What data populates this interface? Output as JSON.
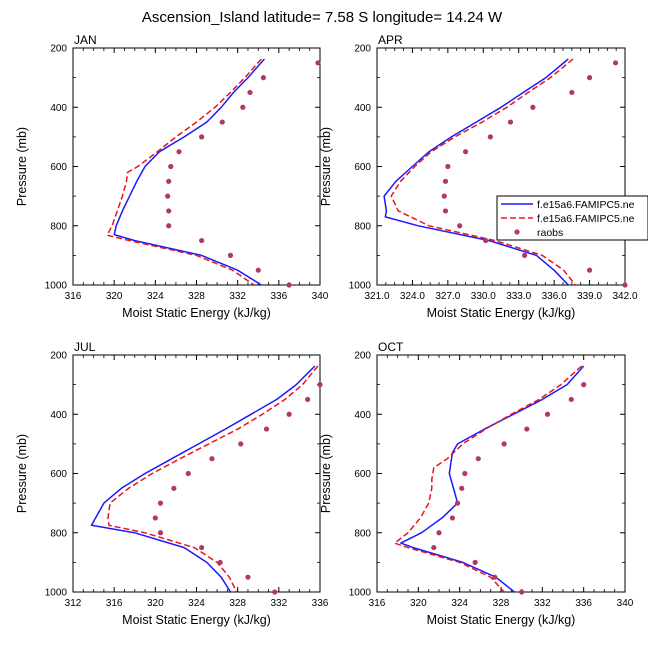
{
  "title": "Ascension_Island  latitude= 7.58 S longitude= 14.24 W",
  "legend": {
    "entries": [
      {
        "label": "f.e15a6.FAMIPC5.ne",
        "style": "solid",
        "color": "#1a1aff"
      },
      {
        "label": "f.e15a6.FAMIPC5.ne",
        "style": "dashed",
        "color": "#e8161b"
      },
      {
        "label": "raobs",
        "style": "marker",
        "color": "#b03a62"
      }
    ]
  },
  "chart_data": [
    {
      "type": "line",
      "panel": "JAN",
      "xlabel": "Moist Static Energy (kJ/kg)",
      "ylabel": "Pressure (mb)",
      "xlim": [
        316,
        340
      ],
      "xticks": [
        316,
        320,
        324,
        328,
        332,
        336,
        340
      ],
      "xtick_labels": [
        "316",
        "320",
        "324",
        "328",
        "332",
        "336",
        "340"
      ],
      "ylim": [
        200,
        1000
      ],
      "yticks": [
        200,
        400,
        600,
        800,
        1000
      ],
      "ytick_labels": [
        "200",
        "400",
        "600",
        "800",
        "1000"
      ],
      "series": [
        {
          "name": "f.e15a6.FAMIPC5.ne (solid)",
          "p": [
            237,
            300,
            350,
            400,
            450,
            500,
            550,
            600,
            650,
            700,
            750,
            800,
            830,
            850,
            900,
            950,
            1000
          ],
          "x": [
            334.6,
            333.0,
            331.6,
            330.4,
            329.0,
            326.8,
            324.4,
            323.0,
            322.2,
            321.5,
            320.8,
            320.2,
            320.0,
            322.0,
            328.5,
            332.0,
            334.3
          ]
        },
        {
          "name": "f.e15a6.FAMIPC5.ne (dashed)",
          "p": [
            237,
            300,
            350,
            400,
            450,
            500,
            550,
            600,
            620,
            650,
            700,
            750,
            800,
            832,
            850,
            900,
            950,
            1000
          ],
          "x": [
            334.3,
            332.7,
            331.3,
            329.8,
            328.0,
            326.0,
            324.2,
            322.3,
            321.3,
            321.2,
            320.8,
            320.3,
            319.8,
            319.3,
            321.5,
            328.0,
            331.5,
            333.6
          ]
        },
        {
          "name": "raobs",
          "p": [
            250,
            300,
            350,
            400,
            450,
            500,
            550,
            600,
            650,
            700,
            750,
            800,
            850,
            900,
            950,
            1000
          ],
          "x": [
            339.8,
            334.5,
            333.2,
            332.5,
            330.5,
            328.5,
            326.3,
            325.5,
            325.3,
            325.2,
            325.3,
            325.3,
            328.5,
            331.3,
            334.0,
            337.0
          ]
        }
      ]
    },
    {
      "type": "line",
      "panel": "APR",
      "xlabel": "Moist Static Energy (kJ/kg)",
      "ylabel": "Pressure (mb)",
      "xlim": [
        321.0,
        342.0
      ],
      "xticks": [
        321.0,
        324.0,
        327.0,
        330.0,
        333.0,
        336.0,
        339.0,
        342.0
      ],
      "xtick_labels": [
        "321.0",
        "324.0",
        "327.0",
        "330.0",
        "333.0",
        "336.0",
        "339.0",
        "342.0"
      ],
      "ylim": [
        200,
        1000
      ],
      "yticks": [
        200,
        400,
        600,
        800,
        1000
      ],
      "ytick_labels": [
        "200",
        "400",
        "600",
        "800",
        "1000"
      ],
      "series": [
        {
          "name": "f.e15a6.FAMIPC5.ne (solid)",
          "p": [
            237,
            300,
            350,
            400,
            450,
            500,
            550,
            600,
            650,
            700,
            750,
            770,
            800,
            850,
            900,
            950,
            1000
          ],
          "x": [
            337.2,
            335.3,
            333.4,
            331.5,
            329.4,
            327.3,
            325.4,
            324.0,
            322.6,
            321.6,
            321.8,
            321.7,
            324.5,
            330.5,
            334.5,
            336.0,
            337.2
          ]
        },
        {
          "name": "f.e15a6.FAMIPC5.ne (dashed)",
          "p": [
            237,
            300,
            350,
            400,
            450,
            500,
            550,
            600,
            650,
            700,
            750,
            800,
            850,
            900,
            950,
            1000
          ],
          "x": [
            337.6,
            335.7,
            333.8,
            332.0,
            329.9,
            327.6,
            325.6,
            324.2,
            323.0,
            322.2,
            322.8,
            325.4,
            331.0,
            335.0,
            336.8,
            337.8
          ]
        },
        {
          "name": "raobs",
          "p": [
            250,
            300,
            350,
            400,
            450,
            500,
            550,
            600,
            650,
            700,
            750,
            800,
            850,
            900,
            950,
            1000
          ],
          "x": [
            341.2,
            339.0,
            337.5,
            334.2,
            332.3,
            330.6,
            328.5,
            327.0,
            326.8,
            326.7,
            326.8,
            328.0,
            330.2,
            333.5,
            339.0,
            342.0
          ]
        }
      ]
    },
    {
      "type": "line",
      "panel": "JUL",
      "xlabel": "Moist Static Energy (kJ/kg)",
      "ylabel": "Pressure (mb)",
      "xlim": [
        312,
        336
      ],
      "xticks": [
        312,
        316,
        320,
        324,
        328,
        332,
        336
      ],
      "xtick_labels": [
        "312",
        "316",
        "320",
        "324",
        "328",
        "332",
        "336"
      ],
      "ylim": [
        200,
        1000
      ],
      "yticks": [
        200,
        400,
        600,
        800,
        1000
      ],
      "ytick_labels": [
        "200",
        "400",
        "600",
        "800",
        "1000"
      ],
      "series": [
        {
          "name": "f.e15a6.FAMIPC5.ne (solid)",
          "p": [
            237,
            300,
            350,
            400,
            450,
            500,
            550,
            600,
            650,
            700,
            750,
            775,
            800,
            850,
            900,
            950,
            1000
          ],
          "x": [
            335.5,
            333.7,
            331.8,
            329.3,
            326.8,
            324.2,
            321.6,
            319.0,
            316.7,
            315.0,
            314.2,
            313.8,
            318.0,
            322.8,
            325.0,
            326.4,
            327.3
          ]
        },
        {
          "name": "f.e15a6.FAMIPC5.ne (dashed)",
          "p": [
            237,
            300,
            350,
            400,
            450,
            500,
            550,
            600,
            650,
            700,
            750,
            775,
            800,
            850,
            900,
            950,
            1000
          ],
          "x": [
            335.8,
            334.3,
            332.6,
            330.4,
            328.0,
            325.2,
            322.4,
            319.7,
            317.4,
            315.6,
            315.4,
            315.5,
            319.0,
            323.8,
            326.0,
            327.2,
            327.9
          ]
        },
        {
          "name": "raobs",
          "p": [
            300,
            350,
            400,
            450,
            500,
            550,
            600,
            650,
            700,
            750,
            800,
            850,
            900,
            950,
            1000
          ],
          "x": [
            336.0,
            334.8,
            333.0,
            330.8,
            328.3,
            325.5,
            323.2,
            321.8,
            320.5,
            320.0,
            320.5,
            324.5,
            326.3,
            329.0,
            331.6
          ]
        }
      ]
    },
    {
      "type": "line",
      "panel": "OCT",
      "xlabel": "Moist Static Energy (kJ/kg)",
      "ylabel": "Pressure (mb)",
      "xlim": [
        316,
        340
      ],
      "xticks": [
        316,
        320,
        324,
        328,
        332,
        336,
        340
      ],
      "xtick_labels": [
        "316",
        "320",
        "324",
        "328",
        "332",
        "336",
        "340"
      ],
      "ylim": [
        200,
        1000
      ],
      "yticks": [
        200,
        400,
        600,
        800,
        1000
      ],
      "ytick_labels": [
        "200",
        "400",
        "600",
        "800",
        "1000"
      ],
      "series": [
        {
          "name": "f.e15a6.FAMIPC5.ne (solid)",
          "p": [
            237,
            300,
            350,
            400,
            450,
            500,
            530,
            600,
            650,
            700,
            750,
            800,
            835,
            850,
            900,
            950,
            1000
          ],
          "x": [
            336.0,
            334.4,
            332.0,
            329.2,
            326.4,
            323.8,
            323.3,
            323.0,
            323.4,
            323.8,
            322.3,
            320.3,
            318.3,
            319.5,
            324.3,
            327.5,
            329.3
          ]
        },
        {
          "name": "f.e15a6.FAMIPC5.ne (dashed)",
          "p": [
            237,
            300,
            350,
            400,
            450,
            500,
            550,
            580,
            620,
            650,
            700,
            750,
            800,
            835,
            850,
            900,
            950,
            1000
          ],
          "x": [
            335.8,
            333.8,
            331.7,
            329.0,
            326.5,
            324.3,
            322.8,
            321.5,
            321.3,
            321.3,
            321.0,
            320.2,
            319.0,
            317.7,
            319.0,
            324.0,
            327.0,
            328.3
          ]
        },
        {
          "name": "raobs",
          "p": [
            300,
            350,
            400,
            450,
            500,
            550,
            600,
            650,
            700,
            750,
            800,
            850,
            900,
            950,
            1000
          ],
          "x": [
            336.0,
            334.8,
            332.5,
            330.5,
            328.3,
            325.8,
            324.5,
            324.2,
            323.8,
            323.3,
            322.0,
            321.5,
            325.5,
            327.4,
            330.0
          ]
        }
      ]
    }
  ]
}
